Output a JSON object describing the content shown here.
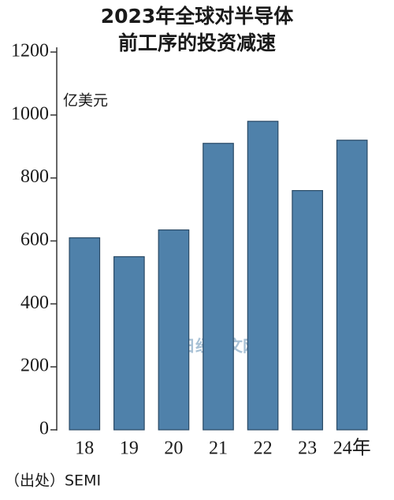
{
  "chart_data": {
    "type": "bar",
    "title": [
      "2023年全球对半导体",
      "前工序的投资减速"
    ],
    "y_unit": "亿美元",
    "categories": [
      "18",
      "19",
      "20",
      "21",
      "22",
      "23",
      "24年"
    ],
    "values": [
      610,
      550,
      635,
      910,
      980,
      760,
      920
    ],
    "color": "#4f81aa",
    "ylim": [
      0,
      1200
    ],
    "yticks": [
      0,
      200,
      400,
      600,
      800,
      1000,
      1200
    ],
    "grid": false,
    "source": "（出处）SEMI",
    "watermark": "日经中文网"
  }
}
